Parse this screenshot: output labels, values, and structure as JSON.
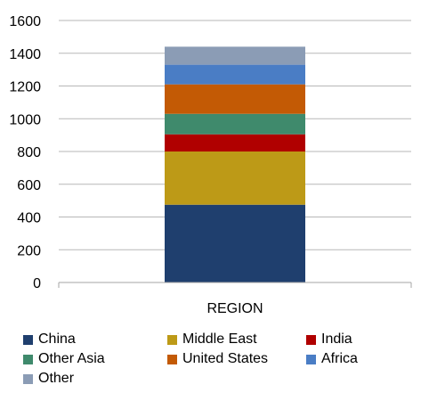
{
  "chart_data": {
    "type": "bar",
    "stacked": true,
    "categories": [
      "REGION"
    ],
    "series": [
      {
        "name": "China",
        "values": [
          475
        ],
        "color": "#1F3F6E"
      },
      {
        "name": "Middle East",
        "values": [
          325
        ],
        "color": "#BD9A17"
      },
      {
        "name": "India",
        "values": [
          105
        ],
        "color": "#B00000"
      },
      {
        "name": "Other Asia",
        "values": [
          125
        ],
        "color": "#3F8A6C"
      },
      {
        "name": "United States",
        "values": [
          180
        ],
        "color": "#C35A05"
      },
      {
        "name": "Africa",
        "values": [
          120
        ],
        "color": "#4A7DC5"
      },
      {
        "name": "Other",
        "values": [
          110
        ],
        "color": "#8B9CB5"
      }
    ],
    "y_ticks": [
      "0",
      "200",
      "400",
      "600",
      "800",
      "1000",
      "1200",
      "1400",
      "1600"
    ],
    "ylim": [
      0,
      1600
    ],
    "grid": true,
    "legend_position": "bottom",
    "title": "",
    "xlabel": "",
    "ylabel": ""
  }
}
